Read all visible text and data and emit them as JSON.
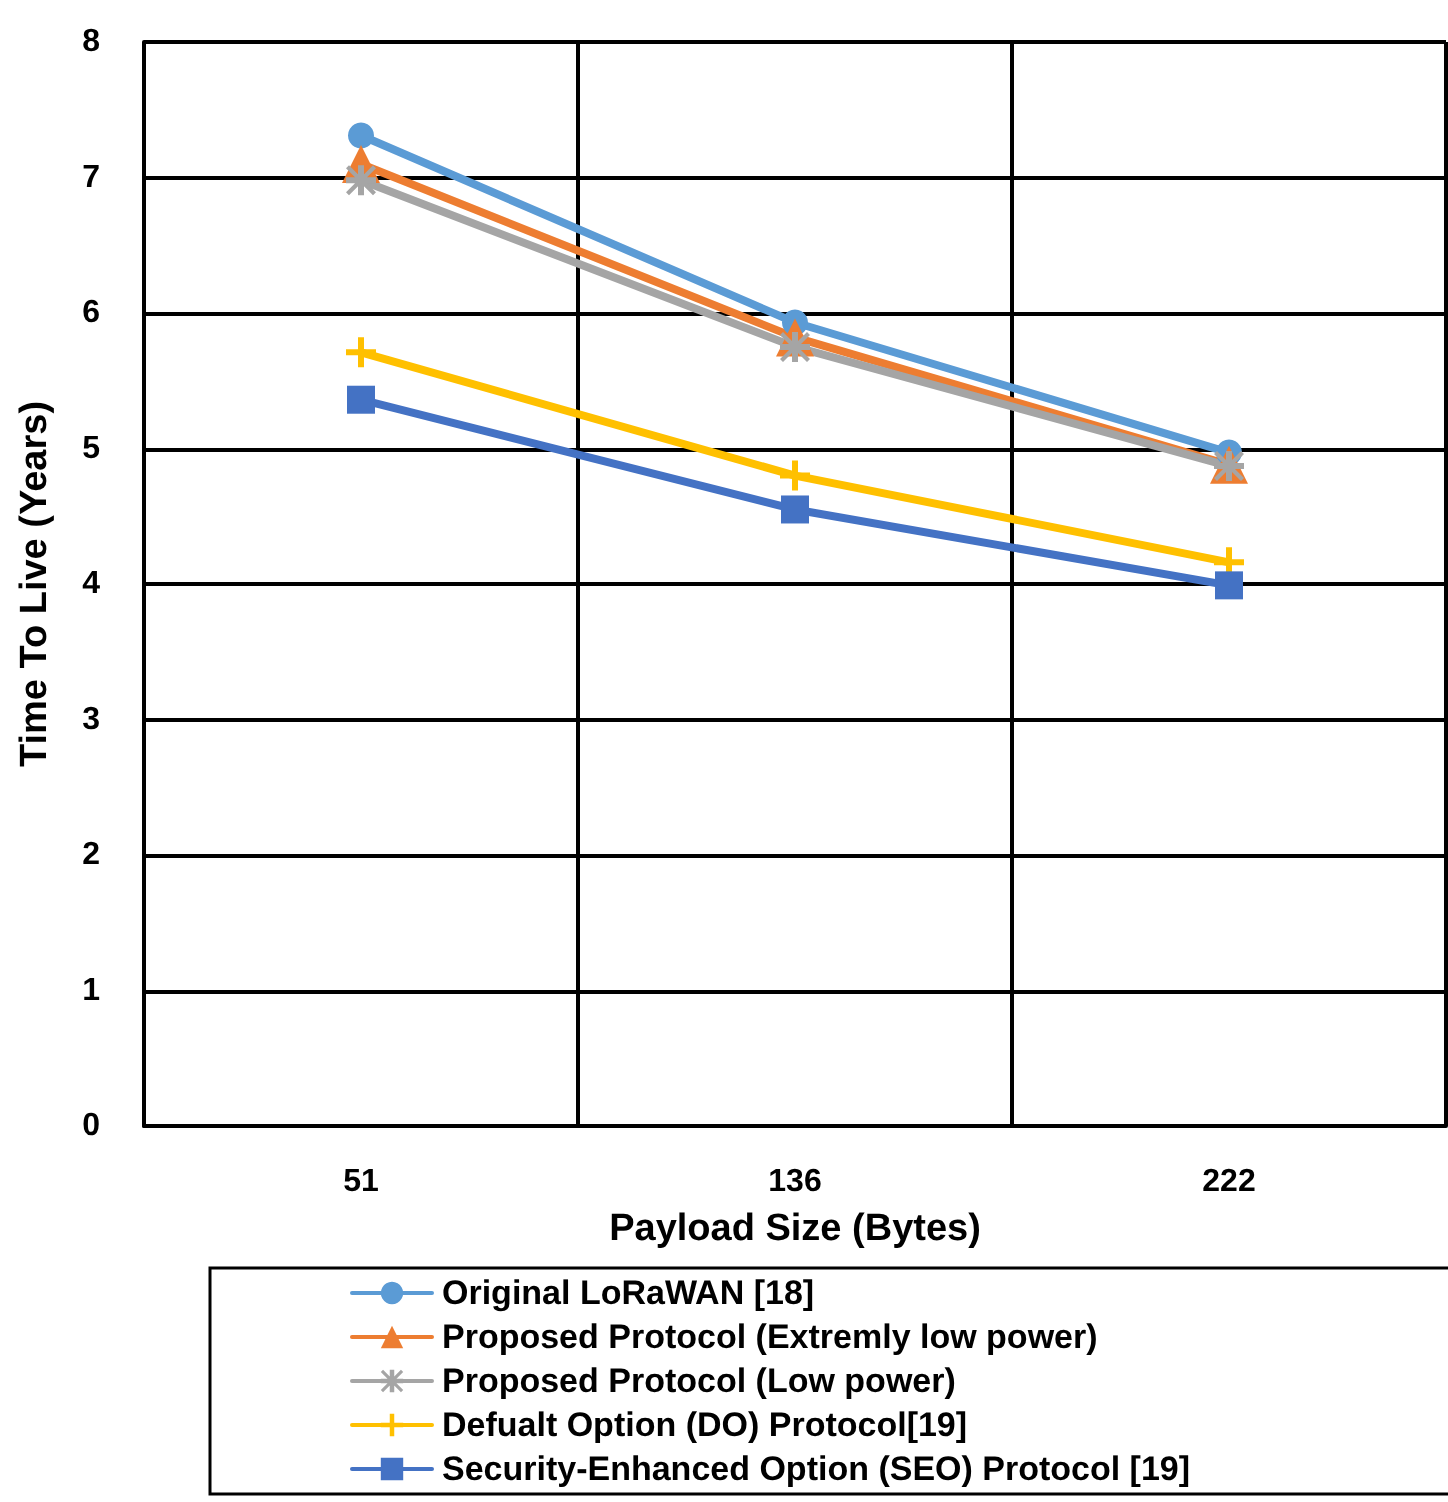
{
  "chart_data": {
    "type": "line",
    "xlabel": "Payload Size (Bytes)",
    "ylabel": "Time To Live (Years)",
    "categories": [
      "51",
      "136",
      "222"
    ],
    "series": [
      {
        "name": "Original LoRaWAN [18]",
        "color": "#5b9bd5",
        "marker": "circle",
        "values": [
          7.31,
          5.93,
          4.97
        ]
      },
      {
        "name": "Proposed Protocol (Extremly low power)",
        "color": "#ed7d31",
        "marker": "triangle",
        "values": [
          7.1,
          5.82,
          4.88
        ]
      },
      {
        "name": "Proposed Protocol (Low power)",
        "color": "#a5a5a5",
        "marker": "star",
        "values": [
          6.98,
          5.75,
          4.87
        ]
      },
      {
        "name": "Defualt Option (DO) Protocol[19]",
        "color": "#ffc000",
        "marker": "cross",
        "values": [
          5.71,
          4.8,
          4.16
        ]
      },
      {
        "name": "Security-Enhanced Option (SEO) Protocol [19]",
        "color": "#4472c4",
        "marker": "square",
        "values": [
          5.36,
          4.55,
          3.99
        ]
      }
    ],
    "ylim": [
      0,
      8
    ],
    "yticks": [
      0,
      1,
      2,
      3,
      4,
      5,
      6,
      7,
      8
    ],
    "grid": true,
    "legend": "bottom",
    "line_style": "solid"
  }
}
